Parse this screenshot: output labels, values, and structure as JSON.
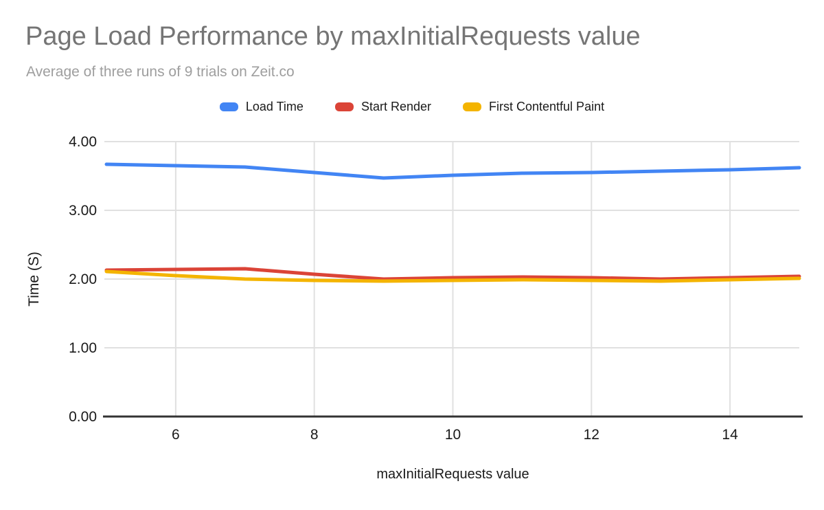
{
  "chart_data": {
    "type": "line",
    "title": "Page Load Performance by maxInitialRequests value",
    "subtitle": "Average of three runs of 9 trials on Zeit.co",
    "xlabel": "maxInitialRequests value",
    "ylabel": "Time (S)",
    "x": [
      5,
      6,
      7,
      8,
      9,
      10,
      11,
      12,
      13,
      14,
      15
    ],
    "series": [
      {
        "name": "Load Time",
        "color": "#4285f4",
        "values": [
          3.67,
          3.65,
          3.63,
          3.55,
          3.47,
          3.51,
          3.54,
          3.55,
          3.57,
          3.59,
          3.62
        ]
      },
      {
        "name": "Start Render",
        "color": "#db4437",
        "values": [
          2.13,
          2.14,
          2.15,
          2.07,
          2.0,
          2.02,
          2.03,
          2.02,
          2.0,
          2.02,
          2.04
        ]
      },
      {
        "name": "First Contentful Paint",
        "color": "#f4b400",
        "values": [
          2.11,
          2.05,
          2.0,
          1.98,
          1.97,
          1.98,
          1.99,
          1.98,
          1.97,
          1.99,
          2.01
        ]
      }
    ],
    "xlim": [
      5,
      15
    ],
    "ylim": [
      0,
      4
    ],
    "xticks": [
      6,
      8,
      10,
      12,
      14
    ],
    "yticks": [
      0,
      1,
      2,
      3,
      4
    ],
    "ytick_decimals": 2,
    "grid": true,
    "legend_position": "top",
    "colors": {
      "gridline": "#e0e0e0",
      "axis_line": "#333333",
      "tick_label": "#1a1a1a",
      "title": "#757575",
      "subtitle": "#9e9e9e",
      "background": "#ffffff"
    }
  }
}
